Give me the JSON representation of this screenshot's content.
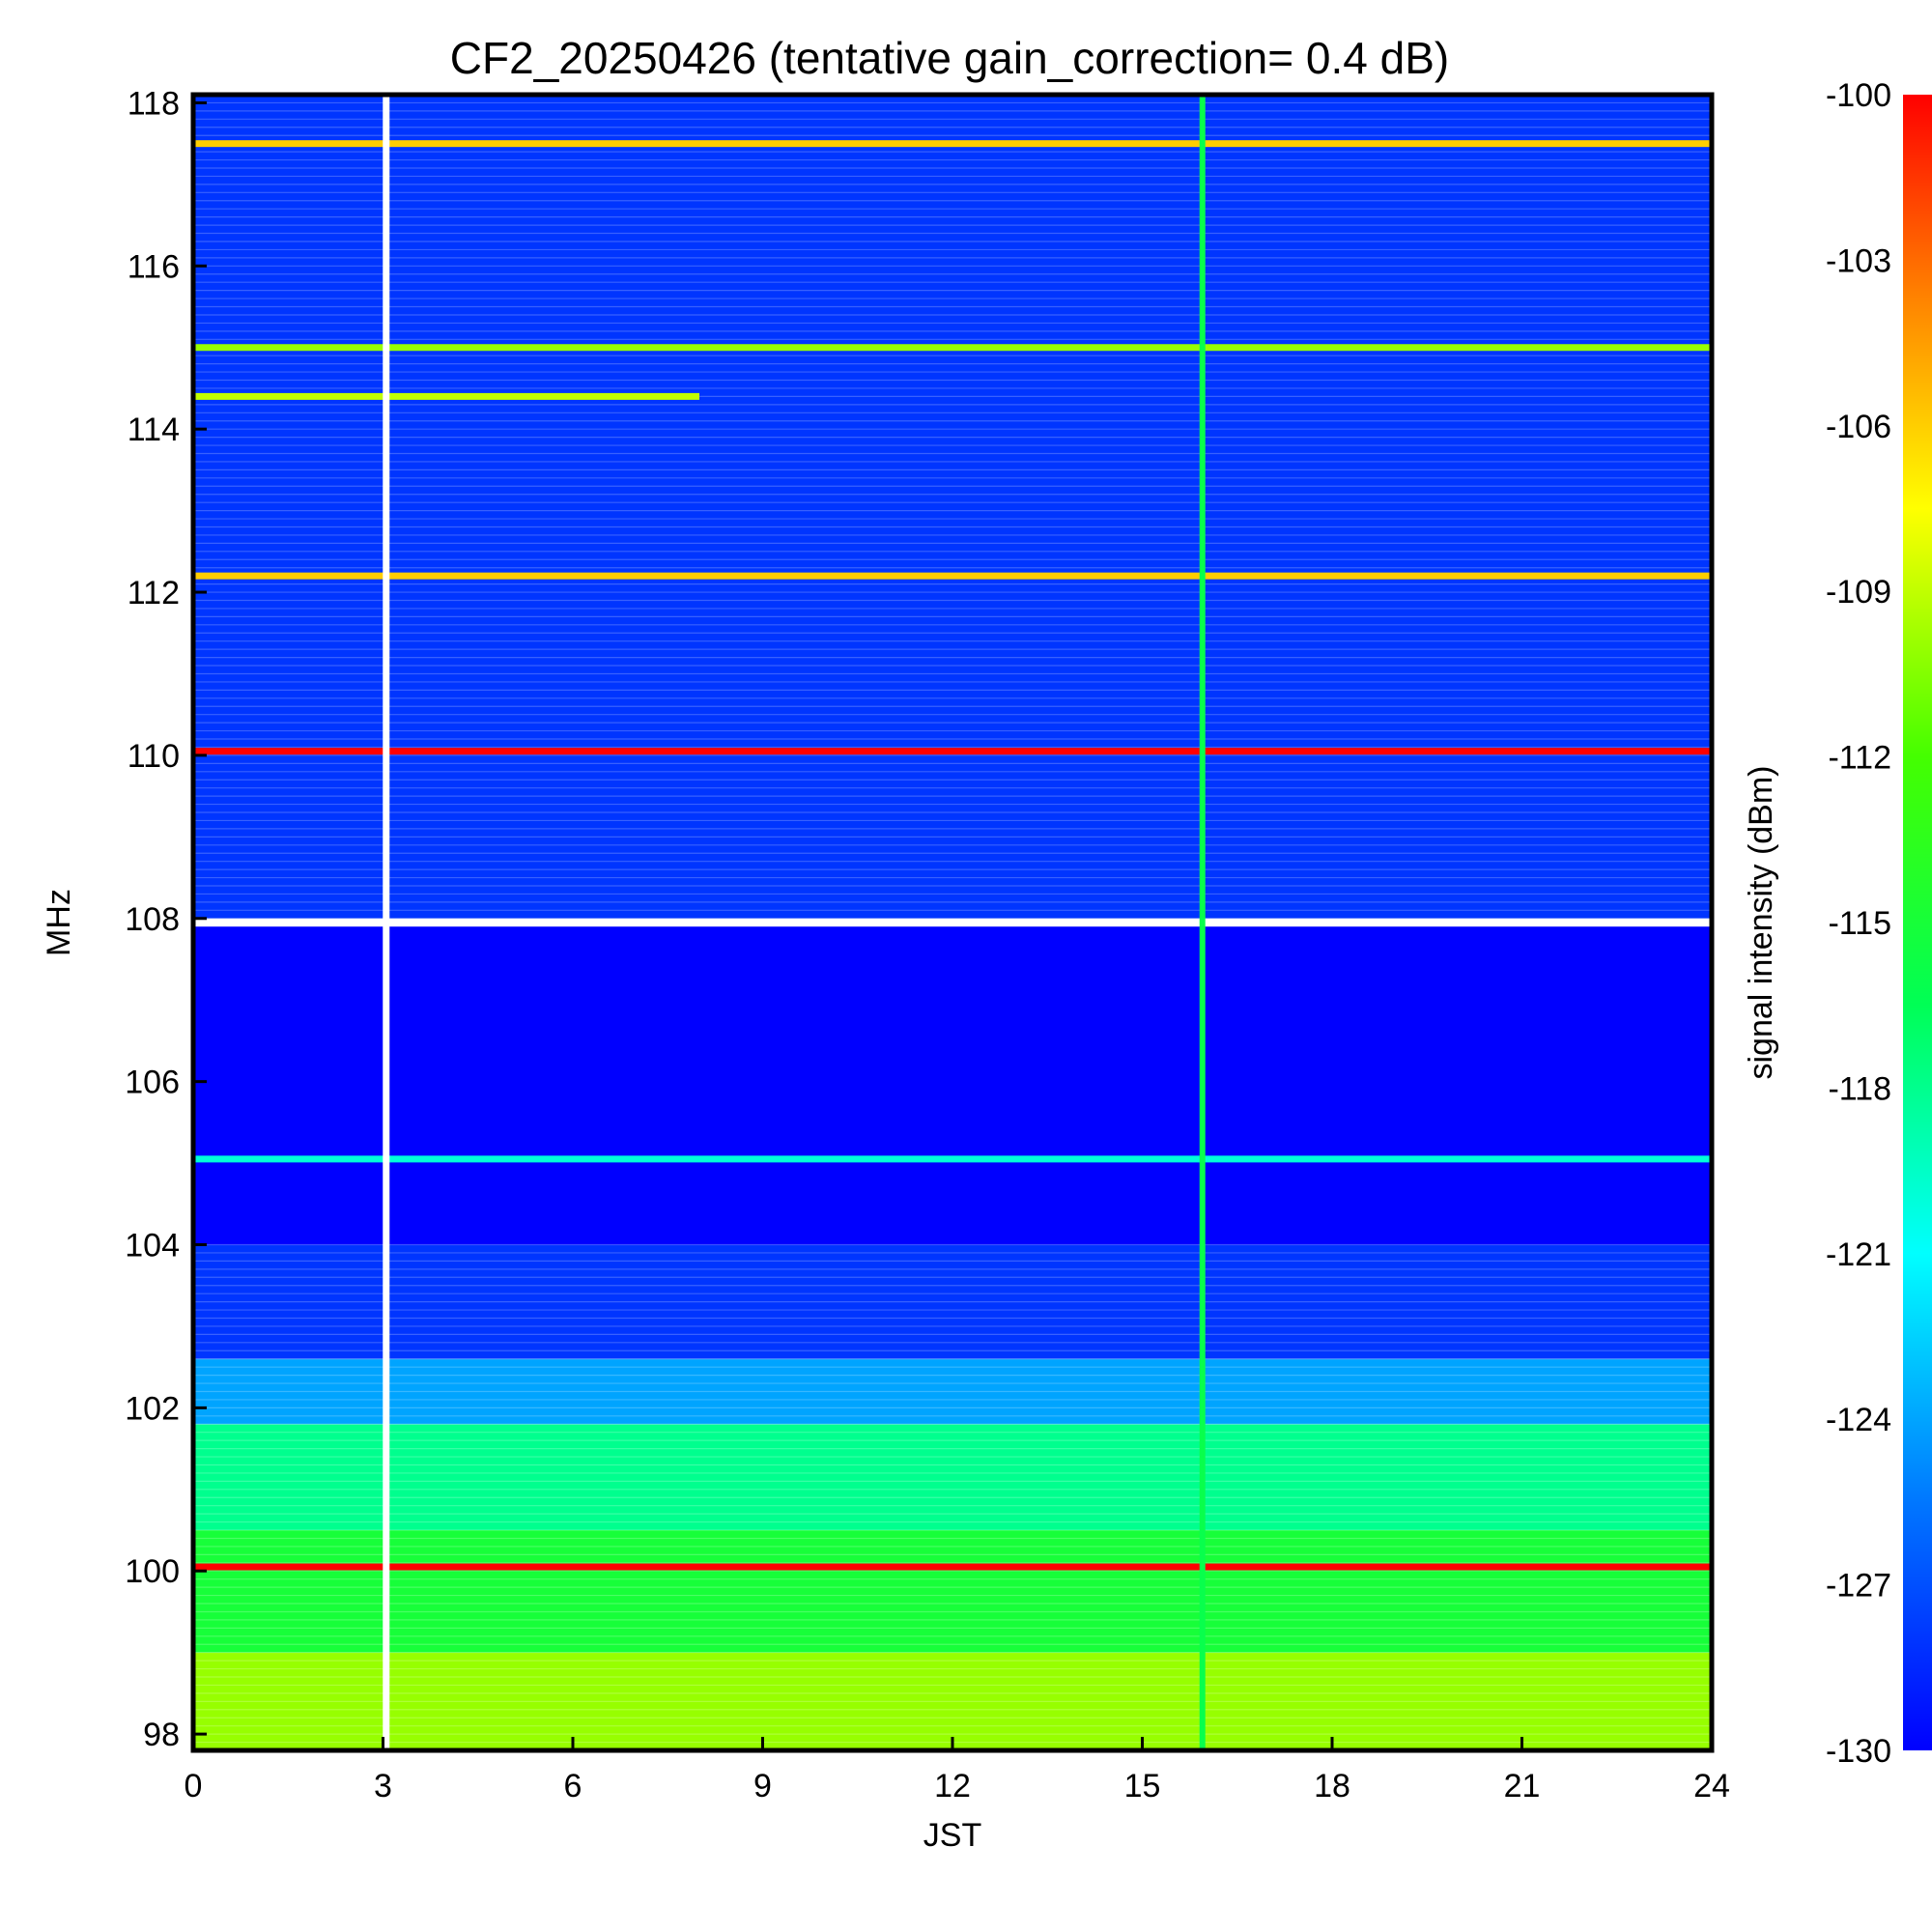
{
  "chart_data": {
    "type": "heatmap",
    "title": "CF2_20250426 (tentative gain_correction=  0.4 dB)",
    "xlabel": "JST",
    "ylabel": "MHz",
    "colorbar_label": "signal intensity (dBm)",
    "xlim": [
      0,
      24
    ],
    "ylim": [
      97.8,
      118.1
    ],
    "clim": [
      -130,
      -100
    ],
    "x_ticks": [
      "0",
      "3",
      "6",
      "9",
      "12",
      "15",
      "18",
      "21",
      "24"
    ],
    "y_ticks": [
      "98",
      "100",
      "102",
      "104",
      "106",
      "108",
      "110",
      "112",
      "114",
      "116",
      "118"
    ],
    "colorbar_ticks": [
      "-100",
      "-103",
      "-106",
      "-109",
      "-112",
      "-115",
      "-118",
      "-121",
      "-124",
      "-127",
      "-130"
    ],
    "colormap": [
      "#0000ff",
      "#0077ff",
      "#00ffff",
      "#00ff55",
      "#44ff00",
      "#ffff00",
      "#ff8000",
      "#ff0000"
    ],
    "background_level_by_band": [
      {
        "from_mhz": 97.8,
        "to_mhz": 99.0,
        "dBm": -110
      },
      {
        "from_mhz": 99.0,
        "to_mhz": 100.5,
        "dBm": -115
      },
      {
        "from_mhz": 100.5,
        "to_mhz": 101.8,
        "dBm": -118
      },
      {
        "from_mhz": 101.8,
        "to_mhz": 102.6,
        "dBm": -124
      },
      {
        "from_mhz": 102.6,
        "to_mhz": 104.0,
        "dBm": -128
      },
      {
        "from_mhz": 104.0,
        "to_mhz": 107.9,
        "dBm": -130
      },
      {
        "from_mhz": 108.0,
        "to_mhz": 118.1,
        "dBm": -128
      }
    ],
    "horizontal_lines": [
      {
        "mhz": 117.5,
        "dBm": -106,
        "x_from": 0,
        "x_to": 24
      },
      {
        "mhz": 115.0,
        "dBm": -110,
        "x_from": 0,
        "x_to": 24
      },
      {
        "mhz": 114.4,
        "dBm": -109,
        "x_from": 0,
        "x_to": 8
      },
      {
        "mhz": 112.2,
        "dBm": -106,
        "x_from": 0,
        "x_to": 24
      },
      {
        "mhz": 110.05,
        "dBm": -100,
        "x_from": 0,
        "x_to": 24
      },
      {
        "mhz": 105.05,
        "dBm": -120,
        "x_from": 0,
        "x_to": 24
      },
      {
        "mhz": 100.05,
        "dBm": -100,
        "x_from": 0,
        "x_to": 24
      }
    ],
    "vertical_lines": [
      {
        "jst": 15.95,
        "dBm": -116
      }
    ],
    "data_gaps": [
      {
        "jst": 3.05
      }
    ]
  }
}
